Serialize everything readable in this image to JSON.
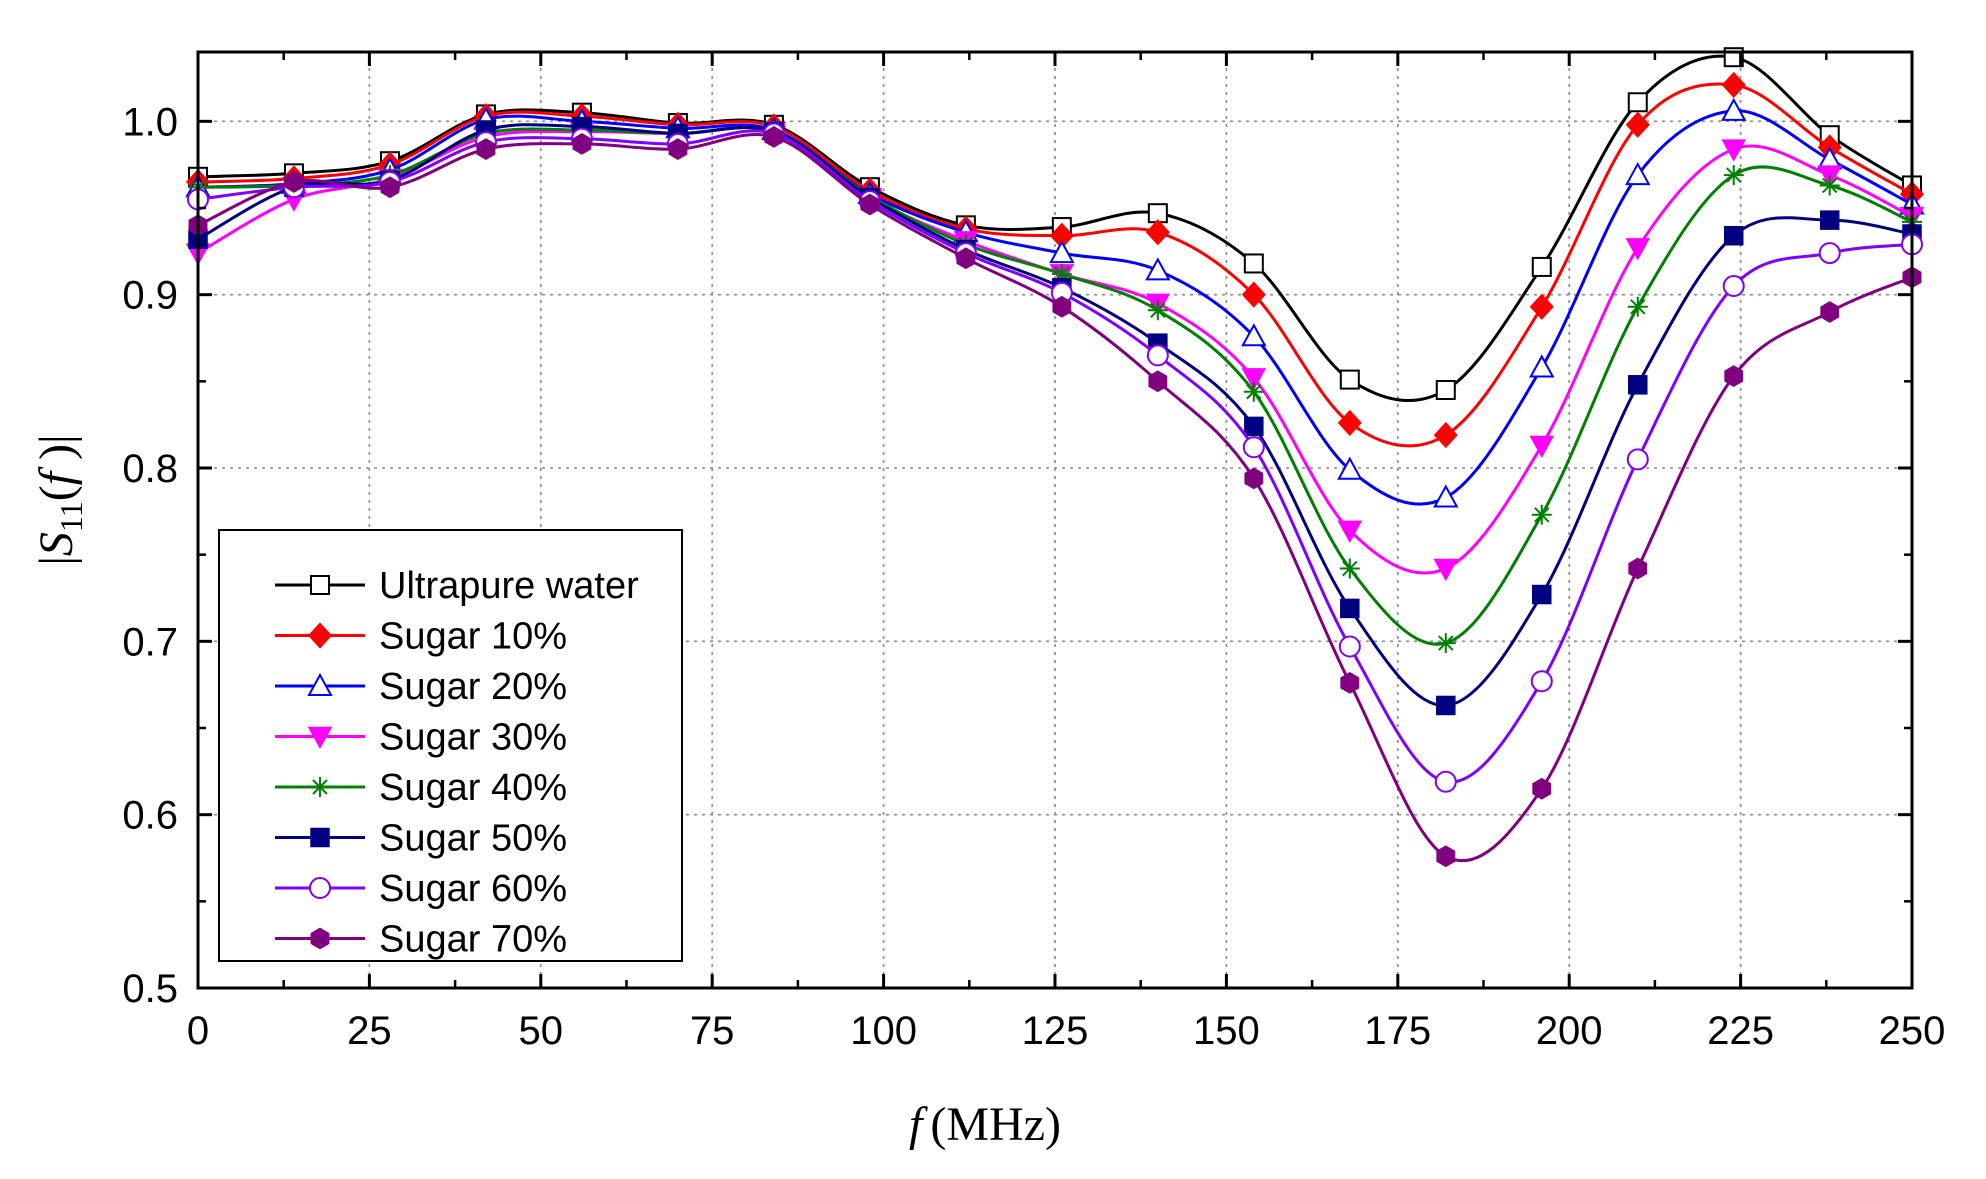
{
  "chart_data": {
    "type": "line",
    "xlabel": "f (MHz)",
    "ylabel": "|S11(f)|",
    "xlim": [
      0,
      250
    ],
    "ylim": [
      0.5,
      1.04
    ],
    "xticks": [
      "0",
      "25",
      "50",
      "75",
      "100",
      "125",
      "150",
      "175",
      "200",
      "225",
      "250"
    ],
    "yticks": [
      "0.5",
      "0.6",
      "0.7",
      "0.8",
      "0.9",
      "1.0"
    ],
    "grid": true,
    "legend_position": "bottom-left",
    "x": [
      0,
      14,
      28,
      42,
      56,
      70,
      84,
      98,
      112,
      126,
      140,
      154,
      168,
      182,
      196,
      210,
      224,
      238,
      250
    ],
    "series": [
      {
        "name": "Ultrapure water",
        "color": "#000000",
        "marker": "open-square",
        "values": [
          0.968,
          0.97,
          0.977,
          1.004,
          1.005,
          0.999,
          0.998,
          0.962,
          0.94,
          0.939,
          0.947,
          0.918,
          0.851,
          0.845,
          0.916,
          1.011,
          1.037,
          0.992,
          0.963
        ]
      },
      {
        "name": "Sugar 10%",
        "color": "#ff0000",
        "marker": "filled-diamond",
        "values": [
          0.965,
          0.967,
          0.975,
          1.003,
          1.003,
          0.998,
          0.997,
          0.96,
          0.938,
          0.934,
          0.936,
          0.9,
          0.826,
          0.819,
          0.893,
          0.998,
          1.021,
          0.985,
          0.958
        ]
      },
      {
        "name": "Sugar 20%",
        "color": "#0000ff",
        "marker": "open-triangle",
        "values": [
          0.962,
          0.964,
          0.972,
          1.001,
          1.0,
          0.996,
          0.995,
          0.958,
          0.936,
          0.924,
          0.914,
          0.876,
          0.799,
          0.783,
          0.858,
          0.969,
          1.006,
          0.978,
          0.952
        ]
      },
      {
        "name": "Sugar 30%",
        "color": "#ff00ff",
        "marker": "filled-triangle-down",
        "values": [
          0.924,
          0.955,
          0.967,
          0.991,
          0.994,
          0.993,
          0.994,
          0.956,
          0.931,
          0.912,
          0.895,
          0.852,
          0.764,
          0.742,
          0.813,
          0.927,
          0.984,
          0.969,
          0.945
        ]
      },
      {
        "name": "Sugar 40%",
        "color": "#007f00",
        "marker": "asterisk",
        "values": [
          0.962,
          0.963,
          0.969,
          0.993,
          0.995,
          0.993,
          0.994,
          0.957,
          0.929,
          0.912,
          0.891,
          0.844,
          0.742,
          0.699,
          0.773,
          0.893,
          0.969,
          0.963,
          0.942
        ]
      },
      {
        "name": "Sugar 50%",
        "color": "#000080",
        "marker": "filled-square",
        "values": [
          0.932,
          0.962,
          0.966,
          0.995,
          0.997,
          0.993,
          0.994,
          0.956,
          0.926,
          0.904,
          0.872,
          0.824,
          0.719,
          0.663,
          0.727,
          0.848,
          0.934,
          0.943,
          0.935
        ]
      },
      {
        "name": "Sugar 60%",
        "color": "#8000ff",
        "marker": "open-circle",
        "values": [
          0.955,
          0.962,
          0.965,
          0.988,
          0.99,
          0.987,
          0.993,
          0.954,
          0.924,
          0.901,
          0.865,
          0.812,
          0.697,
          0.619,
          0.677,
          0.805,
          0.905,
          0.924,
          0.929
        ]
      },
      {
        "name": "Sugar 70%",
        "color": "#800080",
        "marker": "filled-hexagon",
        "values": [
          0.94,
          0.965,
          0.962,
          0.984,
          0.987,
          0.984,
          0.991,
          0.952,
          0.921,
          0.893,
          0.85,
          0.794,
          0.676,
          0.576,
          0.615,
          0.742,
          0.853,
          0.89,
          0.91
        ]
      }
    ]
  }
}
